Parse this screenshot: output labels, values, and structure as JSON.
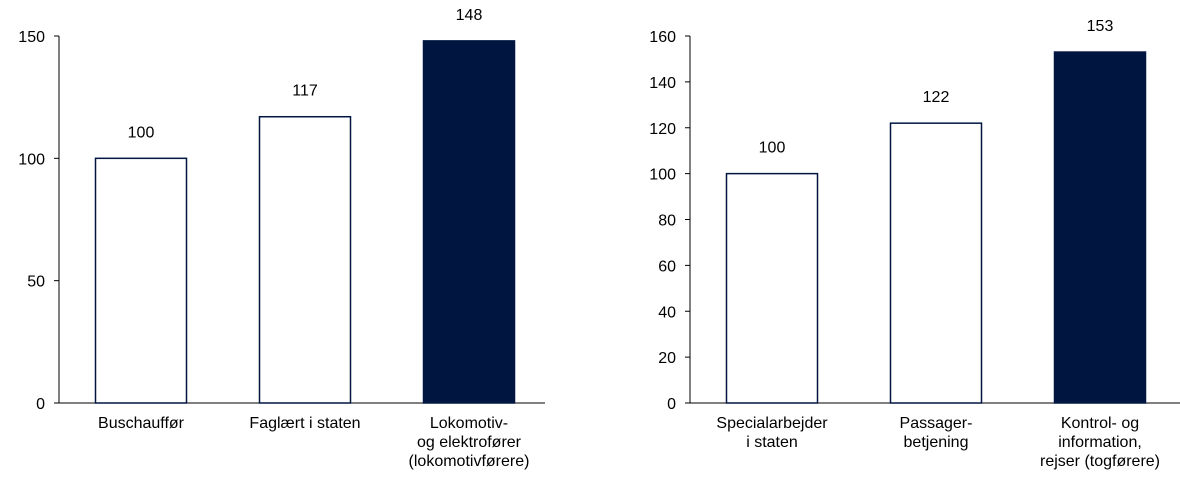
{
  "colors": {
    "dark_bar": "#001641",
    "light_bar": "#ffffff",
    "bar_outline": "#001641",
    "axis": "#000000"
  },
  "chart_data": [
    {
      "type": "bar",
      "title": "",
      "xlabel": "",
      "ylabel": "",
      "ylim": [
        0,
        150
      ],
      "yticks": [
        0,
        50,
        100,
        150
      ],
      "grid": false,
      "categories": [
        [
          "Buschauffør"
        ],
        [
          "Faglært i staten"
        ],
        [
          "Lokomotiv-",
          "og elektrofører",
          "(lokomotivførere)"
        ]
      ],
      "values": [
        100,
        117,
        148
      ],
      "data_labels": [
        "100",
        "117",
        "148"
      ],
      "highlight_index": 2
    },
    {
      "type": "bar",
      "title": "",
      "xlabel": "",
      "ylabel": "",
      "ylim": [
        0,
        160
      ],
      "yticks": [
        0,
        20,
        40,
        60,
        80,
        100,
        120,
        140,
        160
      ],
      "grid": false,
      "categories": [
        [
          "Specialarbejder",
          "i staten"
        ],
        [
          "Passager-",
          "betjening"
        ],
        [
          "Kontrol- og",
          "information,",
          "rejser (togførere)"
        ]
      ],
      "values": [
        100,
        122,
        153
      ],
      "data_labels": [
        "100",
        "122",
        "153"
      ],
      "highlight_index": 2
    }
  ]
}
